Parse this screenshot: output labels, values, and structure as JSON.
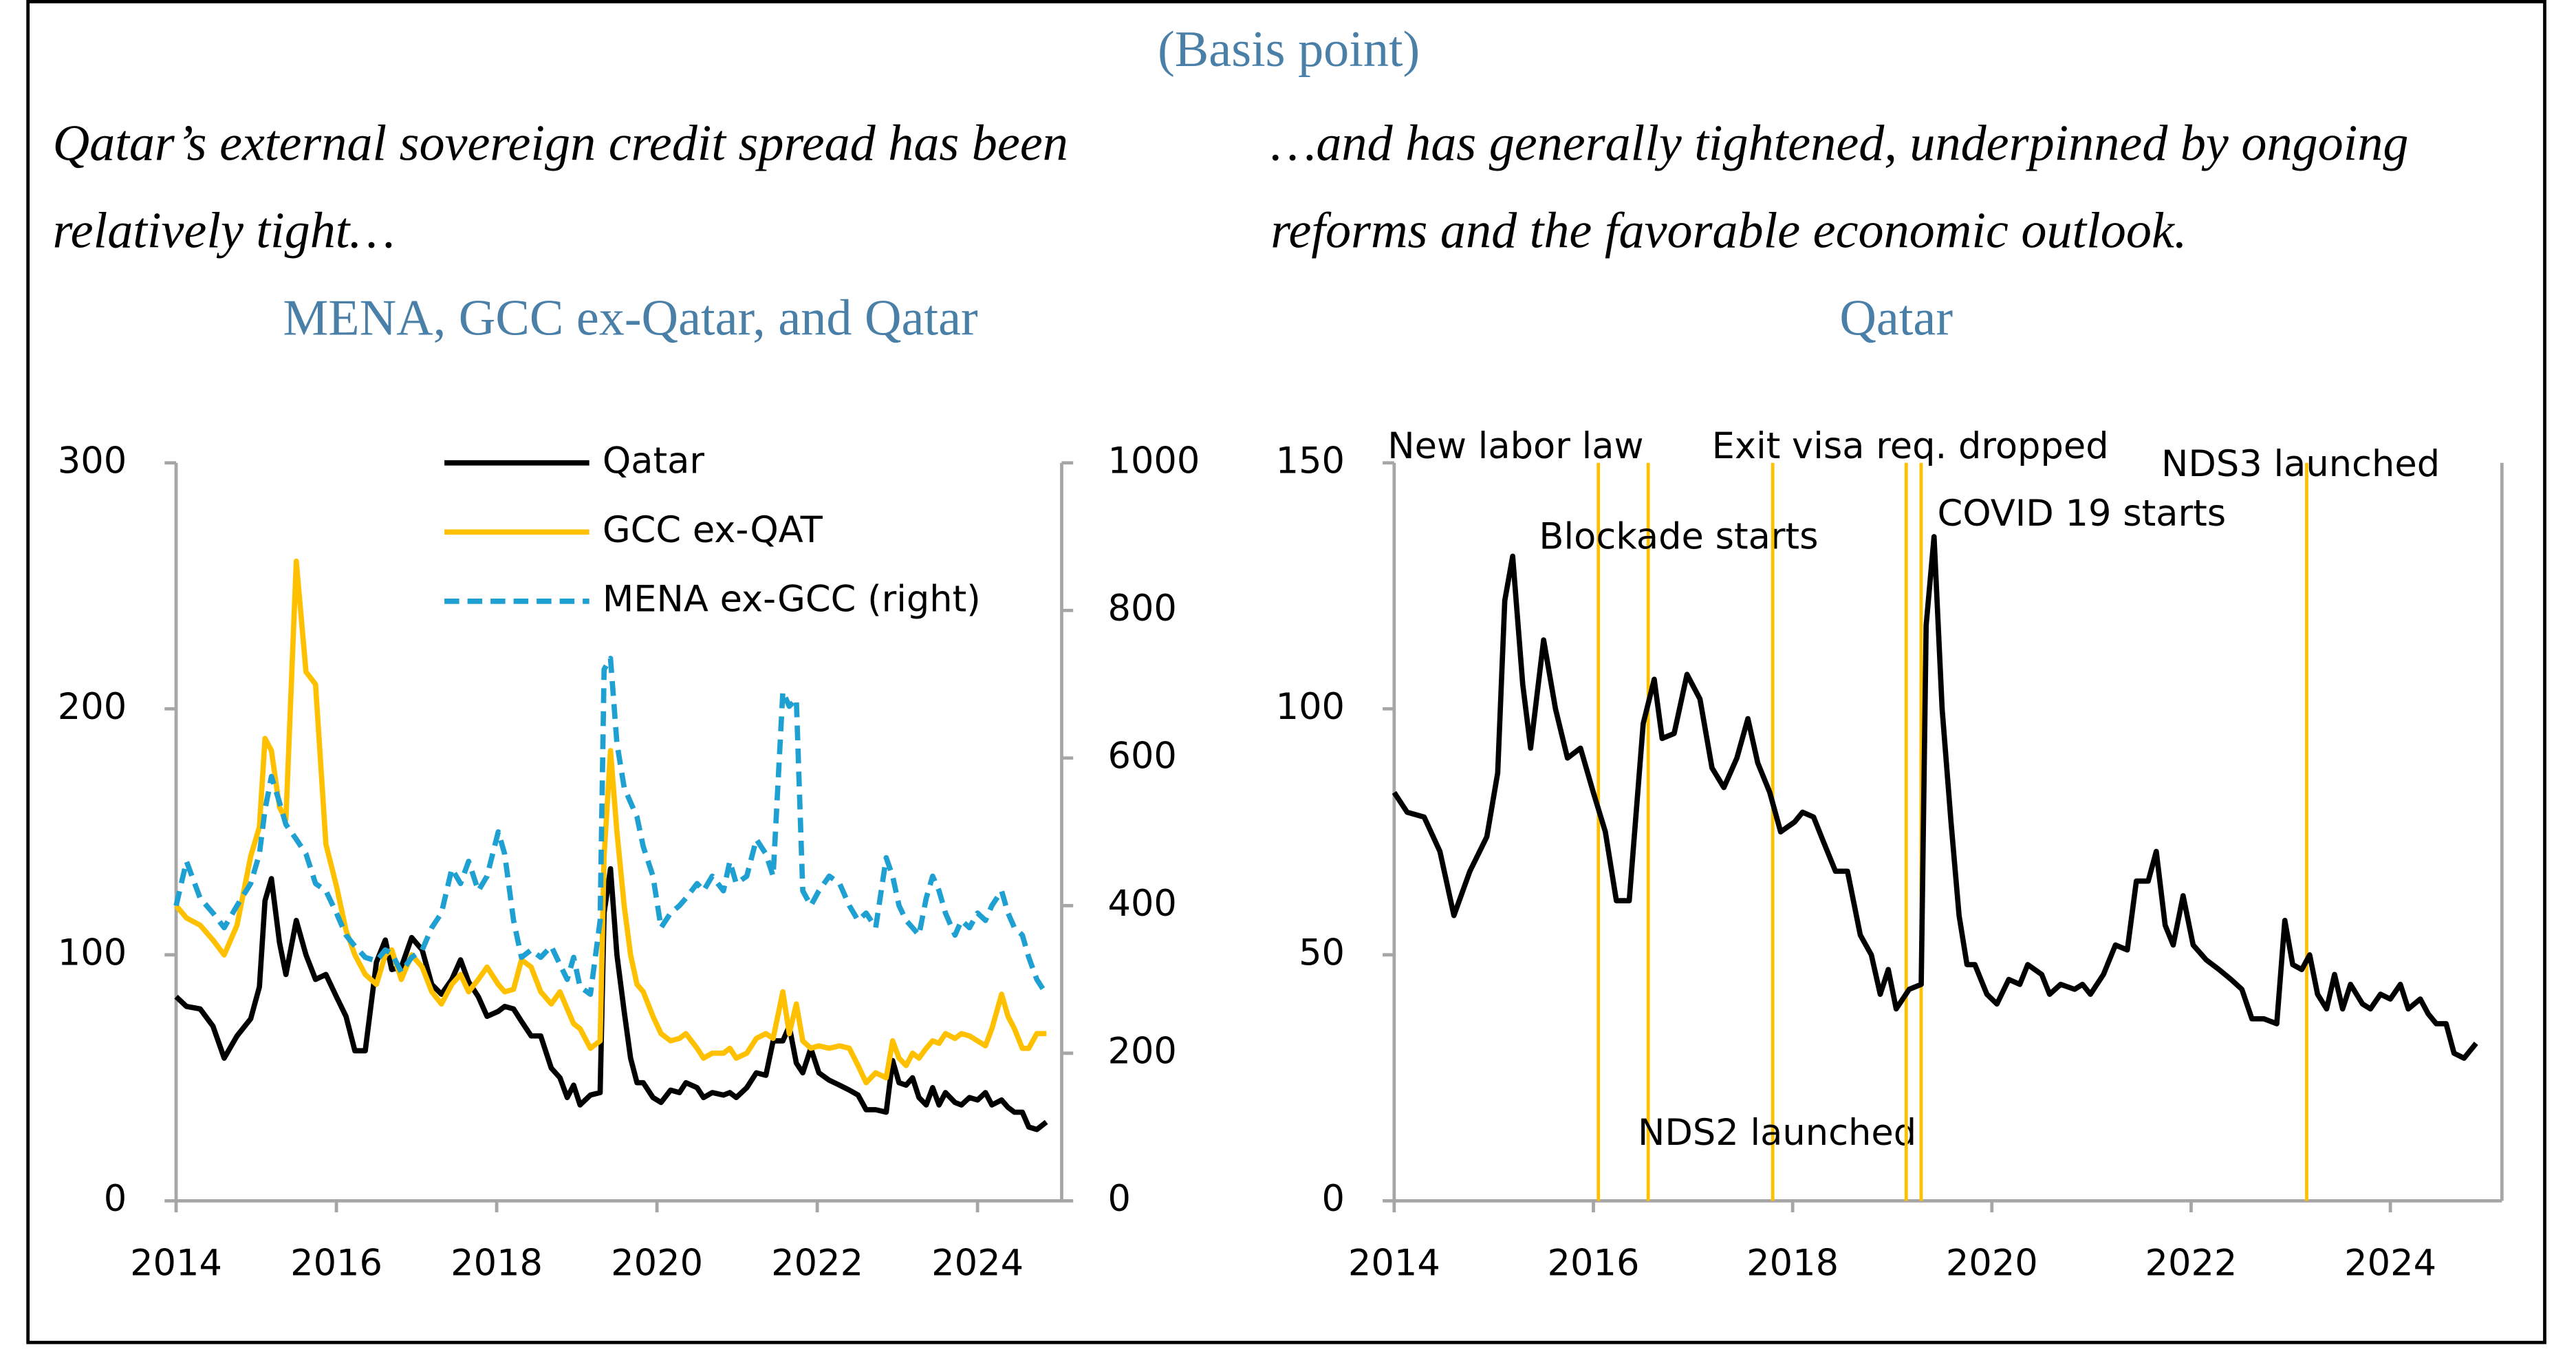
{
  "header": "(Basis point)",
  "caption_left": [
    "Qatar’s external sovereign credit spread has been",
    "relatively tight…"
  ],
  "caption_right": [
    "…and has generally tightened, underpinned by ongoing",
    "reforms and the favorable economic outlook."
  ],
  "chart_data": [
    {
      "type": "line",
      "title": "MENA, GCC ex-Qatar, and Qatar",
      "x": [
        2014.0,
        2014.13,
        2014.3,
        2014.46,
        2014.6,
        2014.76,
        2014.93,
        2015.04,
        2015.11,
        2015.19,
        2015.29,
        2015.37,
        2015.5,
        2015.62,
        2015.74,
        2015.87,
        2016.0,
        2016.12,
        2016.23,
        2016.36,
        2016.5,
        2016.61,
        2016.69,
        2016.81,
        2016.94,
        2017.07,
        2017.19,
        2017.31,
        2017.44,
        2017.55,
        2017.65,
        2017.77,
        2017.88,
        2018.02,
        2018.1,
        2018.21,
        2018.31,
        2018.43,
        2018.55,
        2018.68,
        2018.79,
        2018.88,
        2018.96,
        2019.04,
        2019.17,
        2019.29,
        2019.34,
        2019.42,
        2019.5,
        2019.59,
        2019.67,
        2019.75,
        2019.83,
        2019.95,
        2020.05,
        2020.17,
        2020.28,
        2020.36,
        2020.5,
        2020.58,
        2020.69,
        2020.83,
        2020.91,
        2020.99,
        2021.12,
        2021.24,
        2021.36,
        2021.45,
        2021.57,
        2021.65,
        2021.74,
        2021.82,
        2021.92,
        2022.02,
        2022.15,
        2022.28,
        2022.4,
        2022.51,
        2022.61,
        2022.73,
        2022.86,
        2022.94,
        2023.02,
        2023.11,
        2023.19,
        2023.27,
        2023.36,
        2023.44,
        2023.52,
        2023.6,
        2023.72,
        2023.8,
        2023.9,
        2024.0,
        2024.1,
        2024.18,
        2024.3,
        2024.38,
        2024.46,
        2024.56,
        2024.64,
        2024.74,
        2024.86
      ],
      "series": [
        {
          "name": "Qatar",
          "color": "#000000",
          "dashed": false,
          "values": [
            83,
            79,
            78,
            71,
            58,
            67,
            74,
            87,
            122,
            131,
            105,
            92,
            114,
            100,
            90,
            92,
            83,
            75,
            61,
            61,
            97,
            106,
            94,
            95,
            107,
            102,
            88,
            84,
            90,
            98,
            89,
            83,
            75,
            77,
            79,
            78,
            73,
            67,
            67,
            54,
            50,
            42,
            47,
            39,
            43,
            44,
            117,
            135,
            100,
            77,
            58,
            48,
            48,
            42,
            40,
            45,
            44,
            48,
            46,
            42,
            44,
            43,
            44,
            42,
            46,
            52,
            51,
            65,
            65,
            71,
            56,
            52,
            62,
            52,
            49,
            47,
            45,
            43,
            37,
            37,
            36,
            57,
            48,
            47,
            50,
            42,
            39,
            46,
            39,
            44,
            40,
            39,
            42,
            41,
            44,
            39,
            41,
            38,
            36,
            36,
            30,
            29,
            32
          ]
        },
        {
          "name": "GCC ex-QAT",
          "color": "#ffc000",
          "dashed": false,
          "values": [
            120,
            115,
            112,
            106,
            100,
            112,
            140,
            152,
            188,
            183,
            160,
            155,
            260,
            215,
            210,
            145,
            128,
            110,
            100,
            92,
            88,
            100,
            102,
            90,
            100,
            95,
            85,
            80,
            88,
            92,
            85,
            90,
            95,
            88,
            85,
            86,
            98,
            95,
            85,
            80,
            85,
            78,
            72,
            70,
            62,
            65,
            140,
            183,
            150,
            120,
            100,
            88,
            85,
            75,
            68,
            65,
            66,
            68,
            62,
            58,
            60,
            60,
            62,
            58,
            60,
            66,
            68,
            66,
            85,
            68,
            80,
            65,
            62,
            63,
            62,
            63,
            62,
            55,
            48,
            52,
            50,
            65,
            58,
            55,
            60,
            58,
            62,
            65,
            64,
            68,
            66,
            68,
            67,
            65,
            63,
            70,
            84,
            75,
            70,
            62,
            62,
            68,
            68
          ]
        },
        {
          "name": "MENA ex-GCC (right)",
          "color": "#1fa0d2",
          "dashed": true,
          "axis": "y2",
          "values": [
            400,
            460,
            410,
            390,
            370,
            400,
            430,
            470,
            530,
            575,
            540,
            510,
            490,
            470,
            430,
            420,
            390,
            360,
            345,
            330,
            325,
            340,
            335,
            310,
            330,
            340,
            370,
            390,
            450,
            430,
            460,
            420,
            440,
            500,
            470,
            380,
            330,
            340,
            330,
            345,
            320,
            300,
            330,
            290,
            280,
            380,
            720,
            735,
            620,
            560,
            540,
            520,
            480,
            440,
            370,
            390,
            400,
            410,
            430,
            420,
            440,
            420,
            460,
            430,
            440,
            490,
            470,
            440,
            690,
            670,
            680,
            420,
            400,
            420,
            440,
            430,
            400,
            380,
            390,
            370,
            465,
            440,
            400,
            380,
            370,
            360,
            410,
            440,
            420,
            390,
            360,
            380,
            370,
            390,
            380,
            400,
            420,
            390,
            370,
            360,
            330,
            300,
            280
          ]
        }
      ],
      "xlim": [
        2014,
        2025.05
      ],
      "xticks": [
        2014,
        2016,
        2018,
        2020,
        2022,
        2024
      ],
      "ylim": [
        0,
        300
      ],
      "yticks": [
        0,
        100,
        200,
        300
      ],
      "y2lim": [
        0,
        1000
      ],
      "y2ticks": [
        0,
        200,
        400,
        600,
        800,
        1000
      ],
      "legend": "upper center"
    },
    {
      "type": "line",
      "title": "Qatar",
      "x": [
        2014.0,
        2014.13,
        2014.3,
        2014.46,
        2014.6,
        2014.76,
        2014.93,
        2015.04,
        2015.11,
        2015.19,
        2015.29,
        2015.37,
        2015.5,
        2015.62,
        2015.74,
        2015.87,
        2016.0,
        2016.12,
        2016.23,
        2016.36,
        2016.5,
        2016.61,
        2016.69,
        2016.81,
        2016.94,
        2017.07,
        2017.19,
        2017.31,
        2017.44,
        2017.55,
        2017.65,
        2017.77,
        2017.88,
        2018.02,
        2018.1,
        2018.21,
        2018.31,
        2018.43,
        2018.55,
        2018.68,
        2018.79,
        2018.88,
        2018.96,
        2019.04,
        2019.17,
        2019.29,
        2019.34,
        2019.42,
        2019.5,
        2019.59,
        2019.67,
        2019.75,
        2019.83,
        2019.95,
        2020.05,
        2020.17,
        2020.28,
        2020.36,
        2020.5,
        2020.58,
        2020.69,
        2020.83,
        2020.91,
        2020.99,
        2021.12,
        2021.24,
        2021.36,
        2021.45,
        2021.57,
        2021.65,
        2021.74,
        2021.82,
        2021.92,
        2022.02,
        2022.15,
        2022.28,
        2022.4,
        2022.51,
        2022.61,
        2022.73,
        2022.86,
        2022.94,
        2023.02,
        2023.11,
        2023.19,
        2023.27,
        2023.36,
        2023.44,
        2023.52,
        2023.6,
        2023.72,
        2023.8,
        2023.9,
        2024.0,
        2024.1,
        2024.18,
        2024.3,
        2024.38,
        2024.46,
        2024.56,
        2024.64,
        2024.74,
        2024.86
      ],
      "color": "#000000",
      "values": [
        83,
        79,
        78,
        71,
        58,
        67,
        74,
        87,
        122,
        131,
        105,
        92,
        114,
        100,
        90,
        92,
        83,
        75,
        61,
        61,
        97,
        106,
        94,
        95,
        107,
        102,
        88,
        84,
        90,
        98,
        89,
        83,
        75,
        77,
        79,
        78,
        73,
        67,
        67,
        54,
        50,
        42,
        47,
        39,
        43,
        44,
        117,
        135,
        100,
        77,
        58,
        48,
        48,
        42,
        40,
        45,
        44,
        48,
        46,
        42,
        44,
        43,
        44,
        42,
        46,
        52,
        51,
        65,
        65,
        71,
        56,
        52,
        62,
        52,
        49,
        47,
        45,
        43,
        37,
        37,
        36,
        57,
        48,
        47,
        50,
        42,
        39,
        46,
        39,
        44,
        40,
        39,
        42,
        41,
        44,
        39,
        41,
        38,
        36,
        36,
        30,
        29,
        32
      ],
      "events": [
        {
          "label": "New labor law",
          "x": 2016.05
        },
        {
          "label": "Blockade starts",
          "x": 2016.55
        },
        {
          "label": "NDS2 launched",
          "x": 2017.8
        },
        {
          "label": "Exit visa req. dropped",
          "x": 2019.14
        },
        {
          "label": "COVID 19 starts",
          "x": 2019.29
        },
        {
          "label": "NDS3 launched",
          "x": 2023.16
        }
      ],
      "event_color": "#ffc000",
      "xlim": [
        2014,
        2025.12
      ],
      "xticks": [
        2014,
        2016,
        2018,
        2020,
        2022,
        2024
      ],
      "ylim": [
        0,
        150
      ],
      "yticks": [
        0,
        50,
        100,
        150
      ]
    }
  ]
}
